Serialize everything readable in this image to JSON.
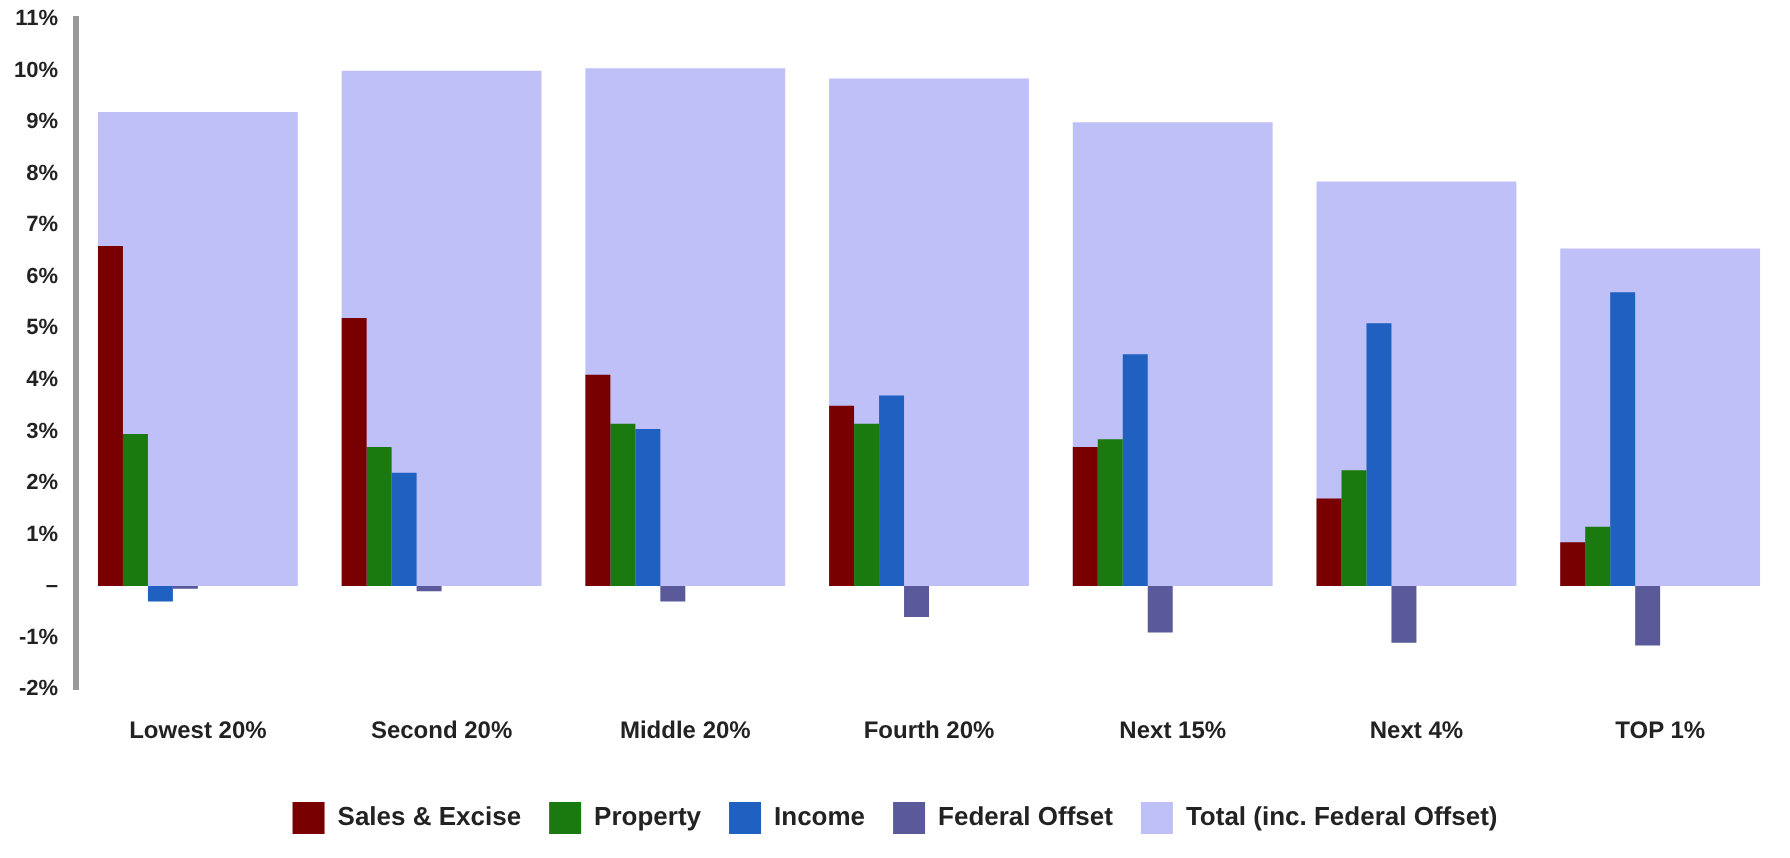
{
  "chart_data": {
    "type": "bar",
    "categories": [
      "Lowest 20%",
      "Second 20%",
      "Middle 20%",
      "Fourth 20%",
      "Next 15%",
      "Next 4%",
      "TOP 1%"
    ],
    "series": [
      {
        "name": "Sales & Excise",
        "color": "#780000",
        "values": [
          6.6,
          5.2,
          4.1,
          3.5,
          2.7,
          1.7,
          0.85
        ]
      },
      {
        "name": "Property",
        "color": "#1a7a10",
        "values": [
          2.95,
          2.7,
          3.15,
          3.15,
          2.85,
          2.25,
          1.15
        ]
      },
      {
        "name": "Income",
        "color": "#2060c0",
        "values": [
          -0.3,
          2.2,
          3.05,
          3.7,
          4.5,
          5.1,
          5.7
        ]
      },
      {
        "name": "Federal Offset",
        "color": "#5a5a9a",
        "values": [
          -0.05,
          -0.1,
          -0.3,
          -0.6,
          -0.9,
          -1.1,
          -1.15
        ]
      },
      {
        "name": "Total (inc. Federal Offset)",
        "color": "#c0c0f8",
        "values": [
          9.2,
          10.0,
          10.05,
          9.85,
          9.0,
          7.85,
          6.55
        ]
      }
    ],
    "ylim": [
      -2,
      11
    ],
    "yticks": [
      {
        "value": -2,
        "label": "-2%"
      },
      {
        "value": -1,
        "label": "-1%"
      },
      {
        "value": 0,
        "label": "–"
      },
      {
        "value": 1,
        "label": "1%"
      },
      {
        "value": 2,
        "label": "2%"
      },
      {
        "value": 3,
        "label": "3%"
      },
      {
        "value": 4,
        "label": "4%"
      },
      {
        "value": 5,
        "label": "5%"
      },
      {
        "value": 6,
        "label": "6%"
      },
      {
        "value": 7,
        "label": "7%"
      },
      {
        "value": 8,
        "label": "8%"
      },
      {
        "value": 9,
        "label": "9%"
      },
      {
        "value": 10,
        "label": "10%"
      },
      {
        "value": 11,
        "label": "11%"
      }
    ],
    "grid": false,
    "legend": "bottom"
  }
}
